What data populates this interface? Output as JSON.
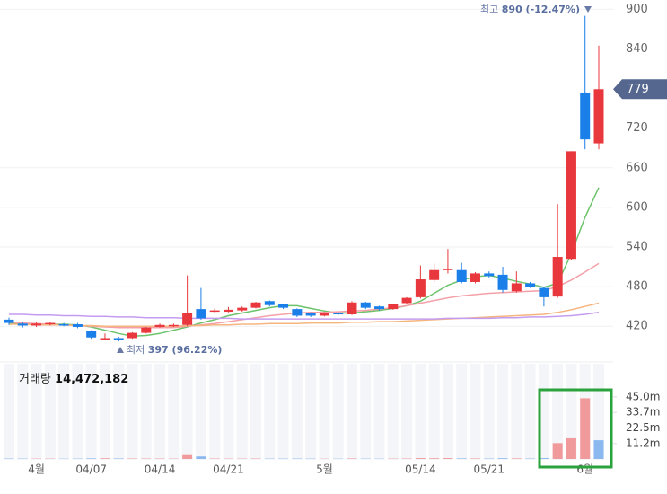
{
  "chart_data": {
    "type": "candlestick",
    "categories": [
      null,
      null,
      "4월",
      null,
      null,
      null,
      "04/07",
      null,
      null,
      null,
      null,
      "04/14",
      null,
      null,
      null,
      null,
      "04/21",
      null,
      null,
      null,
      null,
      null,
      null,
      "5월",
      null,
      null,
      null,
      null,
      null,
      null,
      "05/14",
      null,
      null,
      null,
      null,
      "05/21",
      null,
      null,
      null,
      null,
      null,
      null,
      "6월",
      null
    ],
    "open": [
      430,
      424,
      421,
      423,
      423,
      423,
      413,
      400,
      402,
      402,
      410,
      419,
      420,
      422,
      446,
      442,
      442,
      444,
      448,
      458,
      453,
      446,
      440,
      436,
      440,
      438,
      456,
      450,
      446,
      455,
      464,
      490,
      505,
      505,
      487,
      500,
      498,
      473,
      485,
      478,
      465,
      522,
      774,
      697
    ],
    "high": [
      433,
      426,
      426,
      427,
      425,
      425,
      414,
      409,
      404,
      411,
      419,
      424,
      424,
      497,
      478,
      447,
      449,
      450,
      457,
      459,
      454,
      447,
      441,
      441,
      441,
      458,
      457,
      451,
      454,
      464,
      512,
      515,
      537,
      516,
      502,
      503,
      510,
      503,
      487,
      479,
      605,
      685,
      890,
      845
    ],
    "low": [
      422,
      418,
      419,
      421,
      420,
      417,
      401,
      399,
      397,
      401,
      409,
      418,
      419,
      420,
      430,
      440,
      441,
      442,
      447,
      450,
      446,
      434,
      434,
      435,
      436,
      437,
      446,
      444,
      445,
      453,
      462,
      487,
      500,
      485,
      485,
      494,
      471,
      471,
      478,
      450,
      463,
      520,
      688,
      688
    ],
    "close": [
      425,
      421,
      424,
      425,
      422,
      419,
      403,
      402,
      399,
      410,
      418,
      422,
      422,
      440,
      432,
      444,
      445,
      448,
      456,
      452,
      448,
      436,
      436,
      440,
      438,
      456,
      448,
      446,
      453,
      463,
      491,
      505,
      507,
      487,
      500,
      496,
      475,
      485,
      480,
      464,
      525,
      685,
      703,
      779
    ],
    "up_color": "#e8383d",
    "down_color": "#1a7fe8",
    "ylim": [
      370,
      914
    ],
    "yticks": [
      420,
      480,
      540,
      600,
      660,
      720,
      840,
      900
    ],
    "grid": true,
    "current_price": 779,
    "series": [
      {
        "color": "#6cc36c",
        "values": [
          425,
          424,
          423,
          423,
          423,
          422,
          419,
          414,
          409,
          405,
          406,
          409,
          414,
          419,
          425,
          430,
          436,
          440,
          444,
          448,
          451,
          451,
          447,
          443,
          440,
          440,
          442,
          444,
          447,
          451,
          458,
          470,
          482,
          490,
          495,
          497,
          493,
          488,
          484,
          479,
          485,
          530,
          585,
          630
        ]
      },
      {
        "color": "#f4a0a8",
        "values": [
          426,
          425,
          424,
          423,
          422,
          421,
          420,
          419,
          418,
          418,
          418,
          418,
          418,
          420,
          422,
          424,
          427,
          430,
          433,
          436,
          438,
          440,
          441,
          441,
          442,
          443,
          444,
          446,
          448,
          451,
          455,
          459,
          463,
          466,
          468,
          470,
          471,
          472,
          473,
          474,
          480,
          490,
          502,
          515
        ]
      },
      {
        "color": "#f5b57f",
        "values": [
          423,
          423,
          422,
          422,
          422,
          421,
          421,
          420,
          420,
          420,
          420,
          420,
          420,
          421,
          421,
          422,
          422,
          423,
          423,
          424,
          424,
          424,
          425,
          425,
          425,
          426,
          426,
          427,
          427,
          428,
          429,
          430,
          431,
          432,
          433,
          434,
          435,
          436,
          437,
          438,
          441,
          445,
          450,
          455
        ]
      },
      {
        "color": "#c39cf0",
        "values": [
          438,
          438,
          437,
          437,
          436,
          436,
          435,
          435,
          434,
          434,
          433,
          433,
          433,
          432,
          432,
          432,
          432,
          431,
          431,
          431,
          431,
          431,
          431,
          431,
          431,
          431,
          431,
          431,
          431,
          431,
          431,
          431,
          432,
          432,
          432,
          432,
          433,
          433,
          434,
          434,
          435,
          436,
          438,
          441
        ]
      }
    ],
    "high_annotation": {
      "label": "최고",
      "text": "890 (-12.47%)"
    },
    "low_annotation": {
      "label": "최저",
      "text": "397 (96.22%)"
    },
    "volume": {
      "label": "거래량",
      "value_label": "14,472,182",
      "ylim": [
        0,
        69000000
      ],
      "yticks": [
        {
          "value": 11200000,
          "label": "11.2m"
        },
        {
          "value": 22500000,
          "label": "22.5m"
        },
        {
          "value": 33700000,
          "label": "33.7m"
        },
        {
          "value": 45000000,
          "label": "45.0m"
        }
      ],
      "values": [
        300000,
        250000,
        250000,
        250000,
        200000,
        250000,
        400000,
        500000,
        350000,
        300000,
        300000,
        300000,
        250000,
        2800000,
        1800000,
        300000,
        250000,
        250000,
        300000,
        250000,
        250000,
        300000,
        250000,
        200000,
        200000,
        350000,
        250000,
        200000,
        250000,
        300000,
        600000,
        500000,
        600000,
        400000,
        350000,
        300000,
        500000,
        400000,
        300000,
        600000,
        11500000,
        15000000,
        44000000,
        13600000
      ],
      "colors": [
        "#8ab8ef",
        "#8ab8ef",
        "#f19a9c",
        "#f19a9c",
        "#8ab8ef",
        "#8ab8ef",
        "#8ab8ef",
        "#f19a9c",
        "#8ab8ef",
        "#f19a9c",
        "#f19a9c",
        "#f19a9c",
        "#f19a9c",
        "#f19a9c",
        "#8ab8ef",
        "#f19a9c",
        "#f19a9c",
        "#f19a9c",
        "#f19a9c",
        "#8ab8ef",
        "#8ab8ef",
        "#8ab8ef",
        "#8ab8ef",
        "#f19a9c",
        "#8ab8ef",
        "#f19a9c",
        "#8ab8ef",
        "#8ab8ef",
        "#f19a9c",
        "#f19a9c",
        "#f19a9c",
        "#f19a9c",
        "#f19a9c",
        "#8ab8ef",
        "#f19a9c",
        "#8ab8ef",
        "#8ab8ef",
        "#f19a9c",
        "#8ab8ef",
        "#8ab8ef",
        "#f19a9c",
        "#f19a9c",
        "#f19a9c",
        "#8ab8ef"
      ]
    }
  }
}
